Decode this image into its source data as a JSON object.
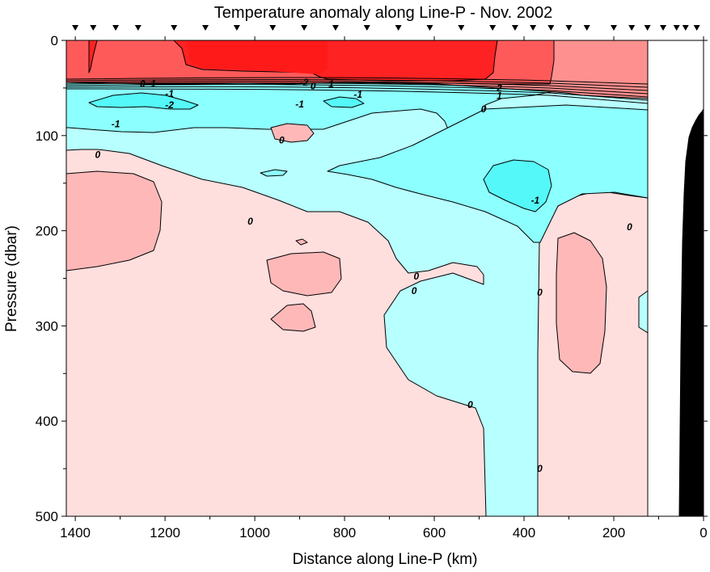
{
  "chart_data": {
    "type": "contour",
    "title": "Temperature anomaly along Line-P - Nov. 2002",
    "xlabel": "Distance along Line-P (km)",
    "ylabel": "Pressure (dbar)",
    "xlim": [
      1420,
      0
    ],
    "ylim": [
      0,
      500
    ],
    "x_ticks": [
      1400,
      1200,
      1000,
      800,
      600,
      400,
      200,
      0
    ],
    "y_ticks": [
      0,
      100,
      200,
      300,
      400,
      500
    ],
    "x_tick_labels": [
      "1400",
      "1200",
      "1000",
      "800",
      "600",
      "400",
      "200",
      "0"
    ],
    "y_tick_labels": [
      "0",
      "100",
      "200",
      "300",
      "400",
      "500"
    ],
    "data_edge_km": 125,
    "station_markers_km": [
      1400,
      1360,
      1310,
      1260,
      1180,
      1110,
      1040,
      960,
      890,
      820,
      750,
      680,
      610,
      540,
      470,
      420,
      380,
      340,
      300,
      260,
      200,
      160,
      125,
      90,
      60,
      40,
      15
    ],
    "levels": [
      -2,
      -1,
      0,
      1,
      2
    ],
    "band_colors": {
      "gt2": "#ff2222",
      "1_to_2": "#ff5a5a",
      "0_to_1": "#ff9090",
      "0_to_0.5": "#ffdede",
      "0.5_to_1": "#ffb8b8",
      "-1_to_0": "#b8ffff",
      "-2_to_-1": "#8cffff",
      "lt-2": "#55f8f8"
    },
    "contour_labels": [
      {
        "text": "0",
        "x": 1250,
        "y": 46
      },
      {
        "text": "-1",
        "x": 1230,
        "y": 46
      },
      {
        "text": "-1",
        "x": 1190,
        "y": 56
      },
      {
        "text": "-2",
        "x": 1190,
        "y": 68
      },
      {
        "text": "-1",
        "x": 1310,
        "y": 88
      },
      {
        "text": "0",
        "x": 1350,
        "y": 120
      },
      {
        "text": "-2",
        "x": 890,
        "y": 44
      },
      {
        "text": "0",
        "x": 870,
        "y": 48
      },
      {
        "text": "1",
        "x": 830,
        "y": 46
      },
      {
        "text": "-1",
        "x": 770,
        "y": 57
      },
      {
        "text": "-1",
        "x": 900,
        "y": 67
      },
      {
        "text": "0",
        "x": 940,
        "y": 105
      },
      {
        "text": "2",
        "x": 455,
        "y": 50
      },
      {
        "text": "1",
        "x": 455,
        "y": 58
      },
      {
        "text": "0",
        "x": 490,
        "y": 72
      },
      {
        "text": "-1",
        "x": 375,
        "y": 168
      },
      {
        "text": "0",
        "x": 1010,
        "y": 190
      },
      {
        "text": "0",
        "x": 640,
        "y": 248
      },
      {
        "text": "0",
        "x": 645,
        "y": 263
      },
      {
        "text": "0",
        "x": 365,
        "y": 265
      },
      {
        "text": "0",
        "x": 165,
        "y": 196
      },
      {
        "text": "0",
        "x": 520,
        "y": 383
      },
      {
        "text": "0",
        "x": 365,
        "y": 450
      }
    ],
    "bathymetry": "seafloor rises steeply near 0-50 km, reaching about 75 dbar at the coast",
    "grid": false,
    "legend": "none"
  }
}
